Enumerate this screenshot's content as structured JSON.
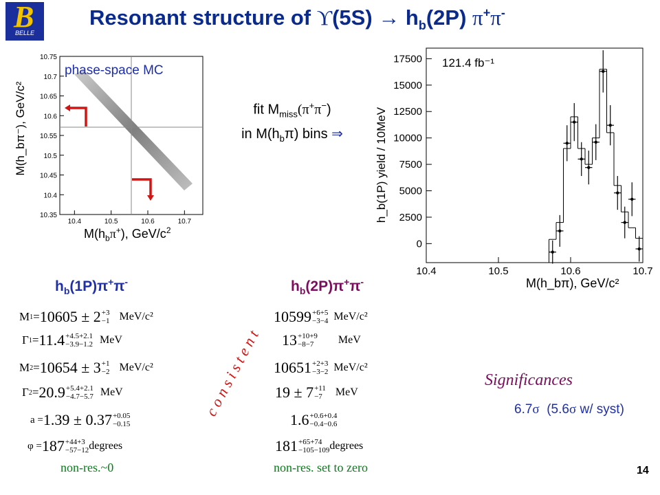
{
  "title": {
    "prefix": "Resonant structure of ",
    "upsilon": "ϒ",
    "state": "(5S) ",
    "arrow": "→",
    "hb": " h",
    "hb_sub": "b",
    "rest": "(2P) ",
    "pipi": "π",
    "plus": "+",
    "pi2": "π",
    "minus": "-"
  },
  "logo": {
    "letter": "B",
    "text": "BELLE"
  },
  "scatter": {
    "label": "phase-space MC",
    "ylabel": "M(h_bπ⁻), GeV/c²",
    "xlabel_main": "M(h",
    "xlabel_sub": "b",
    "xlabel_rest": "π",
    "xlabel_plus": "+",
    "xlabel_end": "), GeV/c",
    "xlabel_sq": "2",
    "yticks": [
      "10.75",
      "10.7",
      "10.65",
      "10.6",
      "10.55",
      "10.5",
      "10.45",
      "10.4",
      "10.35"
    ],
    "xticks": [
      "10.4",
      "10.5",
      "10.6",
      "10.7"
    ]
  },
  "fit_text": {
    "line1_a": "fit M",
    "line1_sub": "miss",
    "line1_b": "(π",
    "line1_plus": "+",
    "line1_c": "π",
    "line1_minus": "−",
    "line1_d": ")",
    "line2_a": "in M(h",
    "line2_sub": "b",
    "line2_b": "π) bins ",
    "arrow": "⇒"
  },
  "chart_data": {
    "type": "bar",
    "title": "",
    "annotation": "121.4 fb⁻¹",
    "xlabel": "M(h_bπ), GeV/c²",
    "ylabel": "h_b(1P) yield / 10MeV",
    "xlim": [
      10.4,
      10.7
    ],
    "ylim": [
      -1800,
      18500
    ],
    "xticks": [
      "10.4",
      "10.5",
      "10.6",
      "10.7"
    ],
    "yticks": [
      "0",
      "2500",
      "5000",
      "7500",
      "10000",
      "12500",
      "15000",
      "17500"
    ],
    "bins": [
      {
        "x": 10.575,
        "y": -800,
        "e": 1100
      },
      {
        "x": 10.585,
        "y": 1200,
        "e": 1500
      },
      {
        "x": 10.595,
        "y": 9500,
        "e": 1700
      },
      {
        "x": 10.605,
        "y": 11500,
        "e": 1800
      },
      {
        "x": 10.615,
        "y": 8000,
        "e": 1600
      },
      {
        "x": 10.625,
        "y": 7200,
        "e": 1600
      },
      {
        "x": 10.635,
        "y": 9600,
        "e": 1700
      },
      {
        "x": 10.645,
        "y": 16300,
        "e": 2000
      },
      {
        "x": 10.655,
        "y": 11200,
        "e": 1900
      },
      {
        "x": 10.665,
        "y": 4800,
        "e": 1600
      },
      {
        "x": 10.675,
        "y": 2000,
        "e": 1500
      },
      {
        "x": 10.685,
        "y": 4200,
        "e": 1600
      },
      {
        "x": 10.695,
        "y": -500,
        "e": 1200
      }
    ],
    "steps": [
      {
        "x0": 10.57,
        "x1": 10.58,
        "y": 400
      },
      {
        "x0": 10.58,
        "x1": 10.59,
        "y": 2000
      },
      {
        "x0": 10.59,
        "x1": 10.6,
        "y": 9000
      },
      {
        "x0": 10.6,
        "x1": 10.61,
        "y": 12000
      },
      {
        "x0": 10.61,
        "x1": 10.62,
        "y": 9000
      },
      {
        "x0": 10.62,
        "x1": 10.63,
        "y": 7500
      },
      {
        "x0": 10.63,
        "x1": 10.64,
        "y": 10000
      },
      {
        "x0": 10.64,
        "x1": 10.65,
        "y": 16500
      },
      {
        "x0": 10.65,
        "x1": 10.66,
        "y": 10500
      },
      {
        "x0": 10.66,
        "x1": 10.67,
        "y": 5500
      },
      {
        "x0": 10.67,
        "x1": 10.68,
        "y": 3000
      },
      {
        "x0": 10.68,
        "x1": 10.69,
        "y": 1500
      },
      {
        "x0": 10.69,
        "x1": 10.7,
        "y": 500
      }
    ]
  },
  "left_col": {
    "header_a": "h",
    "header_sub": "b",
    "header_b": "(1P)π",
    "header_plus": "+",
    "header_c": "π",
    "header_minus": "-",
    "m1": {
      "lhs": "M",
      "lhs_sub": "1",
      "eq": " = ",
      "val": "10605 ± 2",
      "up": "+3",
      "dn": "−1",
      "unit": "MeV/c²"
    },
    "g1": {
      "lhs": "Γ",
      "lhs_sub": "1",
      "eq": " = ",
      "val": "11.4",
      "up": "+4.5+2.1",
      "dn": "−3.9−1.2",
      "unit": "MeV"
    },
    "m2": {
      "lhs": "M",
      "lhs_sub": "2",
      "eq": " = ",
      "val": "10654 ± 3",
      "up": "+1",
      "dn": "−2",
      "unit": "MeV/c²"
    },
    "g2": {
      "lhs": "Γ",
      "lhs_sub": "2",
      "eq": " = ",
      "val": "20.9",
      "up": "+5.4+2.1",
      "dn": "−4.7−5.7",
      "unit": "MeV"
    },
    "a": {
      "lhs": "a =",
      "val": "1.39 ± 0.37",
      "up": "+0.05",
      "dn": "−0.15"
    },
    "phi": {
      "lhs": "φ =",
      "val": "187",
      "up": "+44+3",
      "dn": "−57−12",
      "unit": "degrees"
    },
    "nonres": "non-res.~0"
  },
  "right_col": {
    "header_a": "h",
    "header_sub": "b",
    "header_b": "(2P)π",
    "header_plus": "+",
    "header_c": "π",
    "header_minus": "-",
    "m1": {
      "val": "10599",
      "up": "+6+5",
      "dn": "−3−4",
      "unit": "MeV/c²"
    },
    "g1": {
      "val": "13",
      "up": "+10+9",
      "dn": "−8−7",
      "unit": "MeV"
    },
    "m2": {
      "val": "10651",
      "up": "+2+3",
      "dn": "−3−2",
      "unit": "MeV/c²"
    },
    "g2": {
      "val": "19 ± 7",
      "up": "+11",
      "dn": "−7",
      "unit": "MeV"
    },
    "a": {
      "val": "1.6",
      "up": "+0.6+0.4",
      "dn": "−0.4−0.6"
    },
    "phi": {
      "val": "181",
      "up": "+65+74",
      "dn": "−105−109",
      "unit": "degrees"
    },
    "nonres": "non-res. set to zero"
  },
  "consistent": "c o n s i s t e n t",
  "significances": {
    "label": "Significances",
    "val_a": "6.7",
    "sigma1": "σ",
    "val_b": "  (5.6",
    "sigma2": "σ",
    "val_c": " w/ syst)"
  },
  "page_number": "14"
}
